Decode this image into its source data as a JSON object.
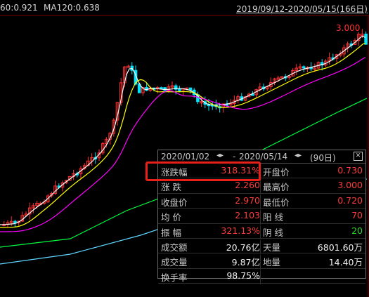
{
  "header": {
    "ma60": "60:0.921",
    "ma120": "MA120:0.638",
    "date_range": "2019/09/12-2020/05/15(166日)"
  },
  "chart": {
    "price_label": "3.000",
    "colors": {
      "up": "#ff3232",
      "down": "#00e5ff",
      "ma_short": "#ffffff",
      "ma_mid": "#ffff00",
      "ma_long": "#ff00ff",
      "ma60": "#00ff40",
      "ma120": "#5ed6ff"
    }
  },
  "panel": {
    "start_date": "2020/01/02",
    "end_date": "2020/05/14",
    "days": "(90日)",
    "rows": [
      {
        "l1": "涨跌幅",
        "v1": "318.31%",
        "l2": "开盘价",
        "v2": "0.730"
      },
      {
        "l1": "涨  跌",
        "v1": "2.260",
        "l2": "最高价",
        "v2": "3.000"
      },
      {
        "l1": "收盘价",
        "v1": "2.970",
        "l2": "最低价",
        "v2": "0.720"
      },
      {
        "l1": "均  价",
        "v1": "2.103",
        "l2": "阳  线",
        "v2": "70"
      },
      {
        "l1": "振  幅",
        "v1": "321.13%",
        "l2": "阴  线",
        "v2": "20"
      },
      {
        "l1": "成交额",
        "v1": "20.76亿",
        "l2": "天量",
        "v2": "6801.60万"
      },
      {
        "l1": "成交量",
        "v1": "9.87亿",
        "l2": "地量",
        "v2": "14.40万"
      },
      {
        "l1": "换手率",
        "v1": "98.75%",
        "l2": "",
        "v2": ""
      }
    ]
  }
}
